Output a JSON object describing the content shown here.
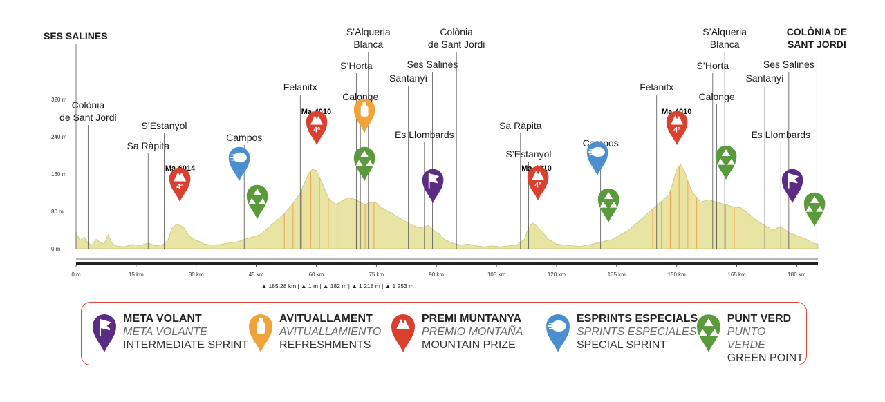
{
  "chart_data": {
    "type": "area",
    "title": "",
    "xlabel": "",
    "ylabel": "",
    "xlim": [
      0,
      185.28
    ],
    "ylim": [
      0,
      320
    ],
    "x_ticks": [
      "0 m",
      "15 km",
      "30 km",
      "45 km",
      "60 km",
      "75 km",
      "90 km",
      "105 km",
      "120 km",
      "135 km",
      "150 km",
      "165 km",
      "180 km"
    ],
    "y_ticks": [
      "0 m",
      "80 m",
      "160 m",
      "240 m",
      "320 m"
    ],
    "profile": {
      "x": [
        0,
        1,
        2,
        3,
        4,
        5,
        6,
        7,
        8,
        9,
        10,
        12,
        14,
        16,
        18,
        20,
        21,
        22,
        23,
        24,
        25,
        26,
        27,
        28,
        29,
        30,
        31,
        32,
        34,
        36,
        38,
        40,
        42,
        44,
        46,
        48,
        50,
        52,
        54,
        56,
        57,
        58,
        59,
        60,
        61,
        62,
        63,
        64,
        65,
        66,
        68,
        70,
        72,
        74,
        75,
        76,
        78,
        80,
        82,
        84,
        86,
        88,
        90,
        91,
        92,
        94,
        96,
        98,
        100,
        102,
        104,
        106,
        108,
        110,
        112,
        113,
        114,
        115,
        116,
        117,
        118,
        119,
        120,
        122,
        124,
        126,
        128,
        130,
        132,
        134,
        136,
        138,
        140,
        142,
        144,
        146,
        148,
        149,
        150,
        151,
        152,
        153,
        154,
        155,
        156,
        158,
        160,
        162,
        164,
        166,
        168,
        170,
        172,
        174,
        176,
        178,
        180,
        182,
        184,
        185.28
      ],
      "y": [
        35,
        18,
        25,
        12,
        8,
        20,
        14,
        10,
        30,
        12,
        6,
        4,
        9,
        7,
        12,
        6,
        8,
        10,
        20,
        45,
        52,
        50,
        44,
        30,
        22,
        18,
        15,
        10,
        8,
        9,
        12,
        14,
        20,
        25,
        30,
        45,
        60,
        75,
        95,
        120,
        140,
        160,
        170,
        168,
        150,
        130,
        110,
        100,
        95,
        100,
        110,
        105,
        95,
        100,
        98,
        90,
        80,
        70,
        60,
        50,
        45,
        50,
        35,
        30,
        20,
        12,
        8,
        10,
        6,
        4,
        6,
        4,
        6,
        8,
        20,
        45,
        55,
        50,
        40,
        30,
        20,
        15,
        10,
        8,
        6,
        5,
        8,
        12,
        16,
        20,
        30,
        40,
        55,
        70,
        85,
        100,
        115,
        140,
        170,
        180,
        165,
        140,
        120,
        110,
        100,
        105,
        100,
        95,
        90,
        88,
        75,
        60,
        50,
        40,
        48,
        35,
        28,
        22,
        12,
        10
      ]
    },
    "labels_top": [
      {
        "name": "SES SALINES",
        "km": 0
      },
      {
        "name": "Colònia de Sant Jordi",
        "km": 3
      },
      {
        "name": "Sa Ràpita",
        "km": 18
      },
      {
        "name": "S’Estanyol",
        "km": 22
      },
      {
        "name": "Campos",
        "km": 42
      },
      {
        "name": "Felanitx",
        "km": 56
      },
      {
        "name": "S’Horta",
        "km": 70
      },
      {
        "name": "S’Alqueria Blanca",
        "km": 73
      },
      {
        "name": "Calonge",
        "km": 71
      },
      {
        "name": "Santanyí",
        "km": 83
      },
      {
        "name": "Ses Salines",
        "km": 89
      },
      {
        "name": "Colònia de Sant Jordi",
        "km": 95
      },
      {
        "name": "Es Llombards",
        "km": 87
      },
      {
        "name": "Sa Ràpita",
        "km": 111
      },
      {
        "name": "S’Estanyol",
        "km": 113
      },
      {
        "name": "Campos",
        "km": 131
      },
      {
        "name": "Felanitx",
        "km": 145
      },
      {
        "name": "S’Horta",
        "km": 159
      },
      {
        "name": "S’Alqueria Blanca",
        "km": 162
      },
      {
        "name": "Calonge",
        "km": 160
      },
      {
        "name": "Santanyí",
        "km": 172
      },
      {
        "name": "Ses Salines",
        "km": 178
      },
      {
        "name": "Es Llombards",
        "km": 176
      },
      {
        "name": "COLÒNIA DE SANT JORDI",
        "km": 185
      }
    ],
    "climb_labels": [
      {
        "name": "Ma-6014",
        "km": 26
      },
      {
        "name": "Ma-4010",
        "km": 60
      },
      {
        "name": "Ma-4010",
        "km": 115
      },
      {
        "name": "Ma-4010",
        "km": 150
      }
    ],
    "summary": {
      "distance": "185.28 km",
      "min_alt": "1 m",
      "max_alt": "182 m",
      "ascent": "1 218 m",
      "descent": "1 253 m"
    },
    "markers": [
      {
        "type": "mountain",
        "km": 26,
        "cat": "4ª"
      },
      {
        "type": "sprint",
        "km": 41
      },
      {
        "type": "green",
        "km": 45
      },
      {
        "type": "mountain",
        "km": 60,
        "cat": "4ª"
      },
      {
        "type": "food",
        "km": 72
      },
      {
        "type": "green",
        "km": 72
      },
      {
        "type": "meta",
        "km": 89
      },
      {
        "type": "mountain",
        "km": 116,
        "cat": "4ª"
      },
      {
        "type": "sprint",
        "km": 131
      },
      {
        "type": "green",
        "km": 135
      },
      {
        "type": "mountain",
        "km": 150,
        "cat": "4ª"
      },
      {
        "type": "green",
        "km": 162
      },
      {
        "type": "meta",
        "km": 179
      },
      {
        "type": "green",
        "km": 183
      }
    ]
  },
  "legend": [
    {
      "id": "meta",
      "color": "#5b2c83",
      "l1": "META VOLANT",
      "l2": "META VOLANTE",
      "l3": "INTERMEDIATE SPRINT"
    },
    {
      "id": "food",
      "color": "#f0a33a",
      "l1": "AVITUALLAMENT",
      "l2": "AVITUALLAMIENTO",
      "l3": "REFRESHMENTS"
    },
    {
      "id": "mountain",
      "color": "#d9402e",
      "l1": "PREMI MUNTANYA",
      "l2": "PREMIO MONTAÑA",
      "l3": "MOUNTAIN PRIZE"
    },
    {
      "id": "sprint",
      "color": "#4a8fcf",
      "l1": "ESPRINTS ESPECIALS",
      "l2": "SPRINTS ESPECIALES",
      "l3": "SPECIAL SPRINT"
    },
    {
      "id": "green",
      "color": "#5a9a3a",
      "l1": "PUNT VERD",
      "l2": "PUNTO VERDE",
      "l3": "GREEN POINT"
    }
  ]
}
